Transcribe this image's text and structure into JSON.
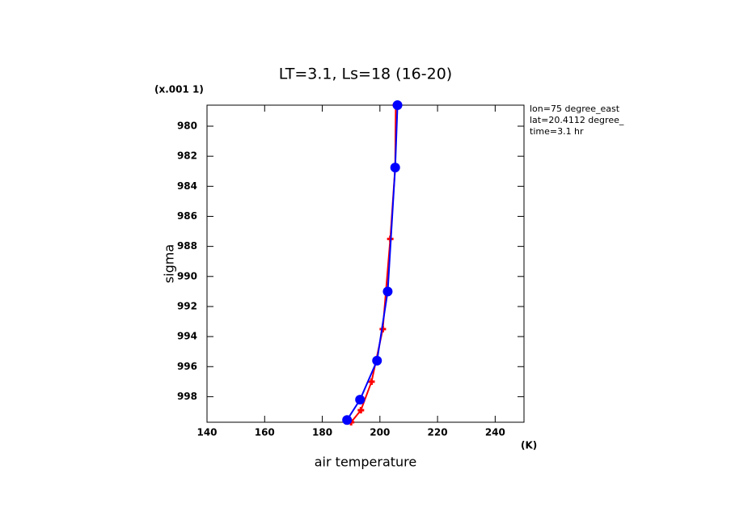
{
  "chart_data": {
    "type": "line",
    "title": "LT=3.1, Ls=18 (16-20)",
    "xlabel": "air temperature",
    "xunit": "(K)",
    "ylabel": "sigma",
    "yunit": "(x.001 1)",
    "annotations": [
      "lon=75 degree_east",
      "lat=20.4112 degree_",
      "time=3.1 hr"
    ],
    "xlim": [
      140,
      250
    ],
    "xticks": [
      140,
      160,
      180,
      200,
      220,
      240
    ],
    "ylim": [
      978.6,
      999.7
    ],
    "y_inverted": true,
    "yticks": [
      980,
      982,
      984,
      986,
      988,
      990,
      992,
      994,
      996,
      998
    ],
    "series": [
      {
        "name": "red",
        "color": "#ff0000",
        "marker": "plus",
        "x": [
          205.5,
          205.3,
          203.6,
          201.0,
          197.1,
          193.4,
          190.0
        ],
        "values": [
          978.6,
          982.75,
          987.5,
          993.5,
          997.0,
          998.9,
          999.7
        ]
      },
      {
        "name": "blue",
        "color": "#0000ff",
        "marker": "circle",
        "x": [
          206.1,
          205.3,
          202.7,
          199.0,
          193.1,
          188.6
        ],
        "values": [
          978.6,
          982.75,
          991.0,
          995.6,
          998.2,
          999.55
        ]
      }
    ]
  }
}
